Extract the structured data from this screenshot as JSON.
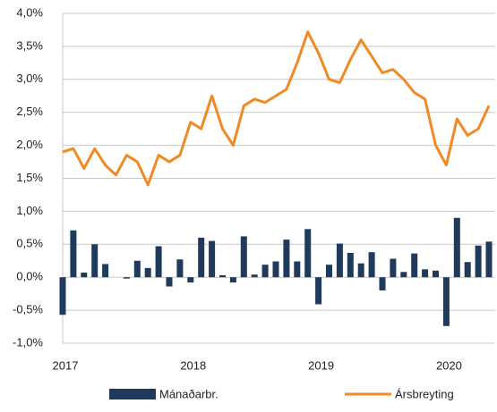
{
  "chart_data": {
    "type": "bar_line",
    "categories": [
      "2017",
      null,
      null,
      null,
      null,
      null,
      null,
      null,
      null,
      null,
      null,
      null,
      "2018",
      null,
      null,
      null,
      null,
      null,
      null,
      null,
      null,
      null,
      null,
      null,
      "2019",
      null,
      null,
      null,
      null,
      null,
      null,
      null,
      null,
      null,
      null,
      null,
      "2020",
      null,
      null,
      null,
      null
    ],
    "series": [
      {
        "name": "Mánaðarbr.",
        "color": "#1f3a5a",
        "kind": "bar",
        "values": [
          -0.57,
          0.71,
          0.07,
          0.5,
          0.2,
          0,
          -0.02,
          0.25,
          0.14,
          0.47,
          -0.14,
          0.27,
          -0.08,
          0.6,
          0.55,
          0.03,
          -0.08,
          0.62,
          0.04,
          0.19,
          0.24,
          0.57,
          0.24,
          0.73,
          -0.41,
          0.19,
          0.51,
          0.37,
          0.21,
          0.38,
          -0.2,
          0.28,
          0.08,
          0.36,
          0.12,
          0.1,
          -0.74,
          0.9,
          0.23,
          0.48,
          0.54
        ]
      },
      {
        "name": "Ársbreyting",
        "color": "#f08a24",
        "kind": "line",
        "values": [
          1.9,
          1.95,
          1.65,
          1.95,
          1.7,
          1.55,
          1.85,
          1.75,
          1.4,
          1.85,
          1.75,
          1.85,
          2.35,
          2.25,
          2.75,
          2.25,
          2.0,
          2.6,
          2.7,
          2.65,
          2.75,
          2.85,
          3.25,
          3.72,
          3.4,
          3.0,
          2.95,
          3.3,
          3.6,
          3.35,
          3.1,
          3.15,
          3.0,
          2.8,
          2.7,
          2.0,
          1.7,
          2.4,
          2.15,
          2.25,
          2.6
        ]
      }
    ],
    "ylim": [
      -1,
      4
    ],
    "yticks": [
      {
        "value": 4,
        "label": "4,0%"
      },
      {
        "value": 3.5,
        "label": "3,5%"
      },
      {
        "value": 3,
        "label": "3,0%"
      },
      {
        "value": 2.5,
        "label": "2,5%"
      },
      {
        "value": 2,
        "label": "2,0%"
      },
      {
        "value": 1.5,
        "label": "1,5%"
      },
      {
        "value": 1,
        "label": "1,0%"
      },
      {
        "value": 0.5,
        "label": "0,5%"
      },
      {
        "value": 0,
        "label": "0,0%"
      },
      {
        "value": -0.5,
        "label": "-0,5%"
      },
      {
        "value": -1,
        "label": "-1,0%"
      }
    ],
    "grid": true,
    "legend": "bottom"
  }
}
